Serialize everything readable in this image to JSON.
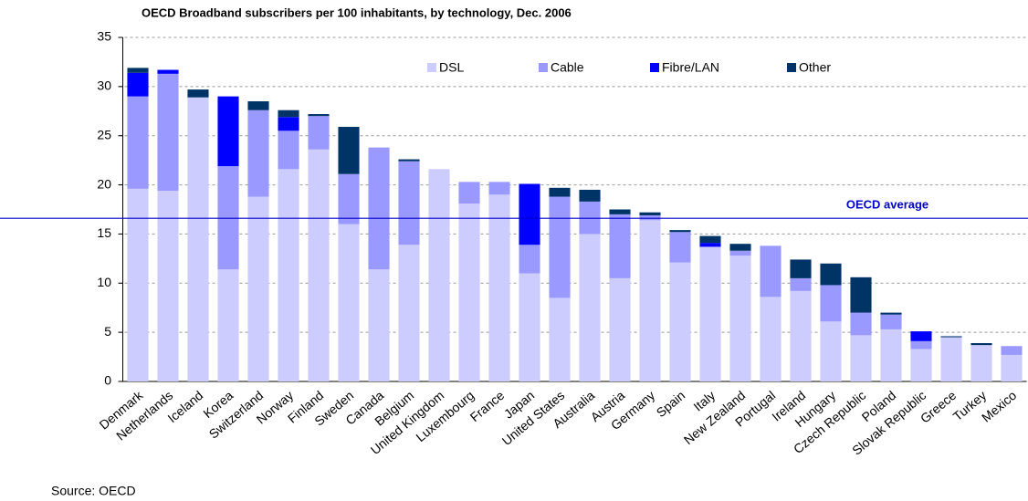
{
  "chart_data": {
    "type": "stacked_bar",
    "title": "OECD Broadband subscribers per 100 inhabitants, by technology, Dec. 2006",
    "source": "Source: OECD",
    "categories": [
      "Denmark",
      "Netherlands",
      "Iceland",
      "Korea",
      "Switzerland",
      "Norway",
      "Finland",
      "Sweden",
      "Canada",
      "Belgium",
      "United Kingdom",
      "Luxembourg",
      "France",
      "Japan",
      "United States",
      "Australia",
      "Austria",
      "Germany",
      "Spain",
      "Italy",
      "New Zealand",
      "Portugal",
      "Ireland",
      "Hungary",
      "Czech Republic",
      "Poland",
      "Slovak Republic",
      "Greece",
      "Turkey",
      "Mexico"
    ],
    "series": [
      {
        "name": "DSL",
        "color": "#ccccff",
        "values": [
          19.6,
          19.4,
          28.9,
          11.4,
          18.8,
          21.6,
          23.6,
          16.0,
          11.4,
          13.9,
          21.6,
          18.1,
          19.0,
          11.0,
          8.5,
          15.0,
          10.5,
          16.4,
          12.1,
          13.7,
          12.8,
          8.6,
          9.2,
          6.1,
          4.7,
          5.3,
          3.3,
          4.5,
          3.7,
          2.7
        ]
      },
      {
        "name": "Cable",
        "color": "#9999ff",
        "values": [
          9.4,
          11.9,
          0,
          10.5,
          8.8,
          3.9,
          3.4,
          5.1,
          12.4,
          8.5,
          0,
          2.2,
          1.3,
          2.9,
          10.3,
          3.3,
          6.5,
          0.5,
          3.1,
          0,
          0.5,
          5.2,
          1.3,
          3.7,
          2.3,
          1.5,
          0.8,
          0,
          0,
          0.9
        ]
      },
      {
        "name": "Fibre/LAN",
        "color": "#0000ff",
        "values": [
          2.4,
          0.4,
          0,
          7.1,
          0,
          1.4,
          0,
          0,
          0,
          0,
          0,
          0,
          0,
          6.2,
          0,
          0,
          0,
          0,
          0,
          0.4,
          0,
          0,
          0,
          0,
          0,
          0,
          1.0,
          0,
          0,
          0
        ]
      },
      {
        "name": "Other",
        "color": "#003366",
        "values": [
          0.5,
          0,
          0.8,
          0,
          0.9,
          0.7,
          0.2,
          4.8,
          0,
          0.2,
          0,
          0,
          0,
          0,
          0.9,
          1.2,
          0.5,
          0.3,
          0.2,
          0.7,
          0.7,
          0,
          1.9,
          2.2,
          3.6,
          0.2,
          0,
          0.1,
          0.2,
          0
        ]
      }
    ],
    "average": {
      "label": "OECD average",
      "value": 16.6,
      "color": "#0000cc"
    },
    "ylim": [
      0,
      35
    ],
    "yticks": [
      0,
      5,
      10,
      15,
      20,
      25,
      30,
      35
    ],
    "grid": true,
    "legend": "top"
  }
}
